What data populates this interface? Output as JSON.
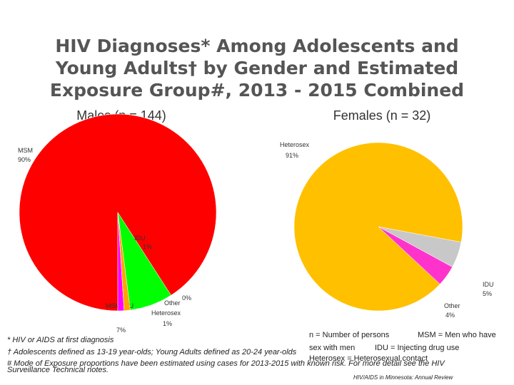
{
  "title_lines": [
    "HIV Diagnoses* Among Adolescents and",
    "Young Adults† by Gender and Estimated",
    "Exposure Group#, 2013 - 2015 Combined"
  ],
  "chart_data": [
    {
      "type": "pie",
      "title": "Males (n = 144)",
      "categories": [
        "MSM",
        "MSM/IDU",
        "IDU",
        "Other",
        "Heterosex"
      ],
      "values": [
        90,
        7,
        1,
        0,
        1
      ],
      "value_labels": [
        "90%",
        "7%",
        "1%",
        "0%",
        "1%"
      ],
      "colors": [
        "#ff0000",
        "#00ff00",
        "#ffa500",
        "#808080",
        "#ff00ff"
      ]
    },
    {
      "type": "pie",
      "title": "Females (n = 32)",
      "categories": [
        "Heterosex",
        "IDU",
        "Other"
      ],
      "values": [
        91,
        5,
        4
      ],
      "value_labels": [
        "91%",
        "5%",
        "4%"
      ],
      "colors": [
        "#ffc000",
        "#c8c8c8",
        "#ff33cc"
      ]
    }
  ],
  "footnotes": [
    "* HIV or AIDS at first diagnosis",
    "† Adolescents defined as 13-19 year-olds; Young Adults defined as 20-24 year-olds",
    "# Mode of Exposure proportions have been estimated using cases for 2013-2015 with known risk. For more detail see the HIV",
    "Surveillance Technical notes."
  ],
  "legend_notes": [
    "n = Number of persons",
    "MSM = Men who have",
    "sex with men",
    "IDU = Injecting drug use",
    "Heterosex = Heterosexual contact"
  ],
  "source": "HIV/AIDS in Minnesota: Annual Review"
}
